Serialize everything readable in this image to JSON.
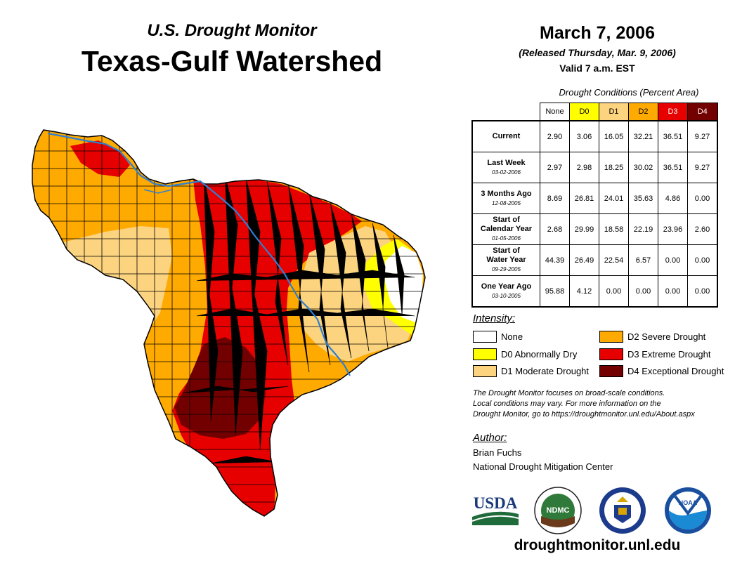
{
  "header": {
    "monitor_title": "U.S. Drought Monitor",
    "region_title": "Texas-Gulf Watershed",
    "date": "March 7, 2006",
    "released": "(Released Thursday, Mar. 9, 2006)",
    "valid": "Valid 7 a.m. EST"
  },
  "table": {
    "caption": "Drought Conditions (Percent Area)",
    "columns": [
      "None",
      "D0",
      "D1",
      "D2",
      "D3",
      "D4"
    ],
    "column_colors": [
      "#ffffff",
      "#ffff00",
      "#fcd37f",
      "#ffaa00",
      "#e60000",
      "#730000"
    ],
    "rows": [
      {
        "label": "Current",
        "date": "",
        "values": [
          "2.90",
          "3.06",
          "16.05",
          "32.21",
          "36.51",
          "9.27"
        ]
      },
      {
        "label": "Last Week",
        "date": "03-02-2006",
        "values": [
          "2.97",
          "2.98",
          "18.25",
          "30.02",
          "36.51",
          "9.27"
        ]
      },
      {
        "label": "3 Months Ago",
        "date": "12-08-2005",
        "values": [
          "8.69",
          "26.81",
          "24.01",
          "35.63",
          "4.86",
          "0.00"
        ]
      },
      {
        "label": "Start of Calendar Year",
        "label_line1": "Start of",
        "label_line2": "Calendar Year",
        "date": "01-05-2006",
        "values": [
          "2.68",
          "29.99",
          "18.58",
          "22.19",
          "23.96",
          "2.60"
        ]
      },
      {
        "label": "Start of Water Year",
        "label_line1": "Start of",
        "label_line2": "Water Year",
        "date": "09-29-2005",
        "values": [
          "44.39",
          "26.49",
          "22.54",
          "6.57",
          "0.00",
          "0.00"
        ]
      },
      {
        "label": "One Year Ago",
        "date": "03-10-2005",
        "values": [
          "95.88",
          "4.12",
          "0.00",
          "0.00",
          "0.00",
          "0.00"
        ]
      }
    ]
  },
  "legend": {
    "title": "Intensity:",
    "items": [
      {
        "label": "None",
        "color": "#ffffff"
      },
      {
        "label": "D0 Abnormally Dry",
        "color": "#ffff00"
      },
      {
        "label": "D1 Moderate Drought",
        "color": "#fcd37f"
      },
      {
        "label": "D2 Severe Drought",
        "color": "#ffaa00"
      },
      {
        "label": "D3 Extreme Drought",
        "color": "#e60000"
      },
      {
        "label": "D4 Exceptional Drought",
        "color": "#730000"
      }
    ]
  },
  "note": {
    "line1": "The Drought Monitor focuses on broad-scale conditions.",
    "line2": "Local conditions may vary. For more information on the",
    "line3": "Drought Monitor, go to https://droughtmonitor.unl.edu/About.aspx"
  },
  "author": {
    "label": "Author:",
    "name": "Brian Fuchs",
    "org": "National Drought Mitigation Center"
  },
  "logos": {
    "usda": "USDA",
    "ndmc": "NDMC",
    "noaa": "NOAA"
  },
  "website": "droughtmonitor.unl.edu"
}
